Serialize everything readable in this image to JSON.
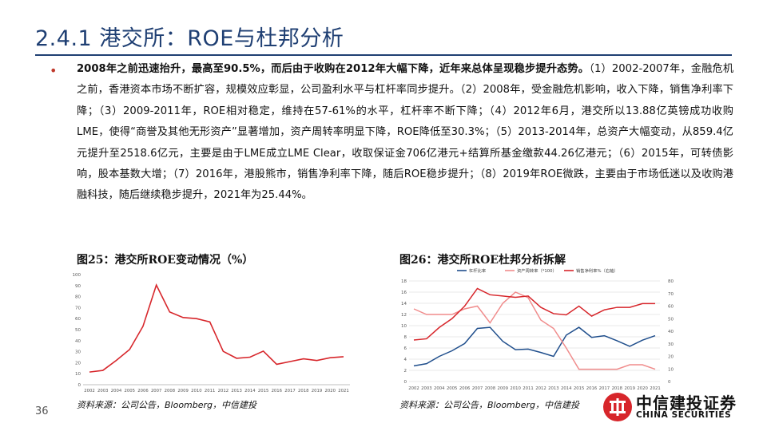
{
  "header": {
    "title_num": "2.4.1",
    "title_text": "港交所：ROE与杜邦分析"
  },
  "body": {
    "bold_lead": "2008年之前迅速抬升，最高至90.5%，而后由于收购在2012年大幅下降，近年来总体呈现稳步提升态势。",
    "text": "（1）2002-2007年，金融危机之前，香港资本市场不断扩容，规模效应彰显，公司盈利水平与杠杆率同步提升。（2）2008年，受金融危机影响，收入下降，销售净利率下降；（3）2009-2011年，ROE相对稳定，维持在57-61%的水平，杠杆率不断下降；（4）2012年6月，港交所以13.88亿英镑成功收购LME，使得“商誉及其他无形资产”显著增加，资产周转率明显下降，ROE降低至30.3%；（5）2013-2014年，总资产大幅变动，从859.4亿元提升至2518.6亿元，主要是由于LME成立LME Clear，收取保证金706亿港元+结算所基金缴款44.26亿港元；（6）2015年，可转债影响，股本基数大增；（7）2016年，港股熊市，销售净利率下降，随后ROE稳步提升；（8）2019年ROE微跌，主要由于市场低迷以及收购港融科技，随后继续稳步提升，2021年为25.44%。"
  },
  "fig25": {
    "title": "图25：港交所ROE变动情况（%）",
    "source": "资料来源：公司公告，Bloomberg，中信建投"
  },
  "fig26": {
    "title": "图26：港交所ROE杜邦分析拆解",
    "source": "资料来源：公司公告，Bloomberg，中信建投"
  },
  "footer": {
    "page": "36",
    "logo_cn": "中信建投证券",
    "logo_en": "CHINA SECURITIES"
  },
  "colors": {
    "title": "#1f3f73",
    "red": "#d7262b",
    "blue": "#1f4e8c",
    "pink": "#f08c8c"
  },
  "chart_data": [
    {
      "type": "line",
      "title": "图25：港交所ROE变动情况（%）",
      "categories": [
        "2002",
        "2003",
        "2004",
        "2005",
        "2006",
        "2007",
        "2008",
        "2009",
        "2010",
        "2011",
        "2012",
        "2013",
        "2014",
        "2015",
        "2016",
        "2017",
        "2018",
        "2019",
        "2020",
        "2021"
      ],
      "series": [
        {
          "values": [
            11.5,
            13,
            22,
            32,
            53,
            90.5,
            66,
            61,
            60,
            57,
            30.3,
            24,
            25,
            30.5,
            18.5,
            21,
            23.5,
            22,
            24.5,
            25.44
          ]
        }
      ],
      "ylim": [
        0,
        100
      ],
      "yticks": [
        "0",
        "10",
        "20",
        "30",
        "40",
        "50",
        "60",
        "70",
        "80",
        "90",
        "100"
      ],
      "grid": false
    },
    {
      "type": "line",
      "title": "图26：港交所ROE杜邦分析拆解",
      "categories": [
        "2002",
        "2003",
        "2004",
        "2005",
        "2006",
        "2007",
        "2008",
        "2009",
        "2010",
        "2011",
        "2012",
        "2013",
        "2014",
        "2015",
        "2016",
        "2017",
        "2018",
        "2019",
        "2020",
        "2021"
      ],
      "legend": [
        "杠杆比率",
        "资产周转率（*100）",
        "销售净利率%（右轴）"
      ],
      "legend_position": "top",
      "series": [
        {
          "name": "杠杆比率",
          "axis": "left",
          "color": "#1f4e8c",
          "values": [
            2.8,
            3.2,
            4.5,
            5.5,
            6.8,
            9.5,
            9.7,
            7.2,
            5.7,
            5.8,
            5.2,
            4.5,
            8.3,
            9.7,
            7.9,
            8.2,
            7.3,
            6.3,
            7.4,
            8.2
          ]
        },
        {
          "name": "资产周转率（*100）",
          "axis": "left",
          "color": "#f08c8c",
          "values": [
            13,
            12,
            12,
            12,
            13,
            13.5,
            10.5,
            14,
            16,
            15,
            11,
            9.5,
            6,
            2.2,
            2.2,
            2.2,
            2.2,
            3,
            3,
            2.2
          ]
        },
        {
          "name": "销售净利率%（右轴）",
          "axis": "right",
          "color": "#d7262b",
          "values": [
            33,
            34,
            43,
            50,
            60,
            74,
            69,
            68,
            67,
            68,
            59,
            54,
            53,
            60,
            52,
            57,
            59,
            59,
            62,
            62
          ]
        }
      ],
      "ylim": [
        0,
        18
      ],
      "yticks": [
        "0",
        "2",
        "4",
        "6",
        "8",
        "10",
        "12",
        "14",
        "16",
        "18"
      ],
      "y2lim": [
        0,
        80
      ],
      "y2ticks": [
        "0",
        "10",
        "20",
        "30",
        "40",
        "50",
        "60",
        "70",
        "80"
      ],
      "grid": true
    }
  ]
}
